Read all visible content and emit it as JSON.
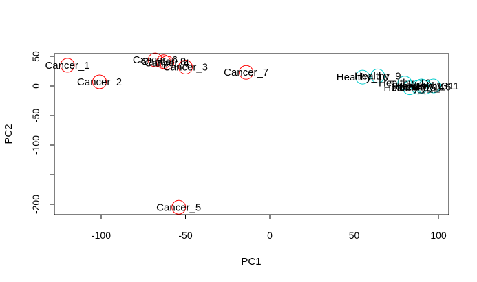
{
  "chart_data": {
    "type": "scatter",
    "title": "",
    "xlabel": "PC1",
    "ylabel": "PC2",
    "xlim": [
      -125,
      105
    ],
    "ylim": [
      -215,
      53
    ],
    "x_ticks": [
      {
        "value": -100,
        "label": "-100"
      },
      {
        "value": -50,
        "label": "-50"
      },
      {
        "value": 0,
        "label": "0"
      },
      {
        "value": 50,
        "label": "50"
      },
      {
        "value": 100,
        "label": "100"
      }
    ],
    "y_ticks": [
      {
        "value": 50,
        "label": "50"
      },
      {
        "value": 0,
        "label": "0"
      },
      {
        "value": -50,
        "label": "-50"
      },
      {
        "value": -100,
        "label": "-100"
      },
      {
        "value": -150,
        "label": ""
      },
      {
        "value": -200,
        "label": "-200"
      }
    ],
    "grid": false,
    "legend": "none",
    "colors": {
      "Cancer": "#ff0000",
      "Healthy": "#00cccc"
    },
    "points": [
      {
        "label": "Cancer_1",
        "group": "Cancer",
        "x": -120,
        "y": 35
      },
      {
        "label": "Cancer_2",
        "group": "Cancer",
        "x": -101,
        "y": 7
      },
      {
        "label": "Cancer_3",
        "group": "Cancer",
        "x": -50,
        "y": 32
      },
      {
        "label": "Cancer_4",
        "group": "Cancer",
        "x": -61,
        "y": 39
      },
      {
        "label": "Cancer_5",
        "group": "Cancer",
        "x": -54,
        "y": -205
      },
      {
        "label": "Cancer_6",
        "group": "Cancer",
        "x": -68,
        "y": 44
      },
      {
        "label": "Cancer_7",
        "group": "Cancer",
        "x": -14,
        "y": 23
      },
      {
        "label": "Cancer_8",
        "group": "Cancer",
        "x": -63,
        "y": 41
      },
      {
        "label": "Healthy_9",
        "group": "Healthy",
        "x": 64,
        "y": 17
      },
      {
        "label": "Healthy_10",
        "group": "Healthy",
        "x": 55,
        "y": 15
      },
      {
        "label": "Healthy_11",
        "group": "Healthy",
        "x": 97,
        "y": 0
      },
      {
        "label": "Healthy_12",
        "group": "Healthy",
        "x": 80,
        "y": 5
      },
      {
        "label": "Healthy_13",
        "group": "Healthy",
        "x": 90,
        "y": 0
      },
      {
        "label": "Healthy_14",
        "group": "Healthy",
        "x": 88,
        "y": -2
      },
      {
        "label": "Healthy_15",
        "group": "Healthy",
        "x": 83,
        "y": -3
      },
      {
        "label": "Healthy_16",
        "group": "Healthy",
        "x": 92,
        "y": -2
      }
    ]
  }
}
